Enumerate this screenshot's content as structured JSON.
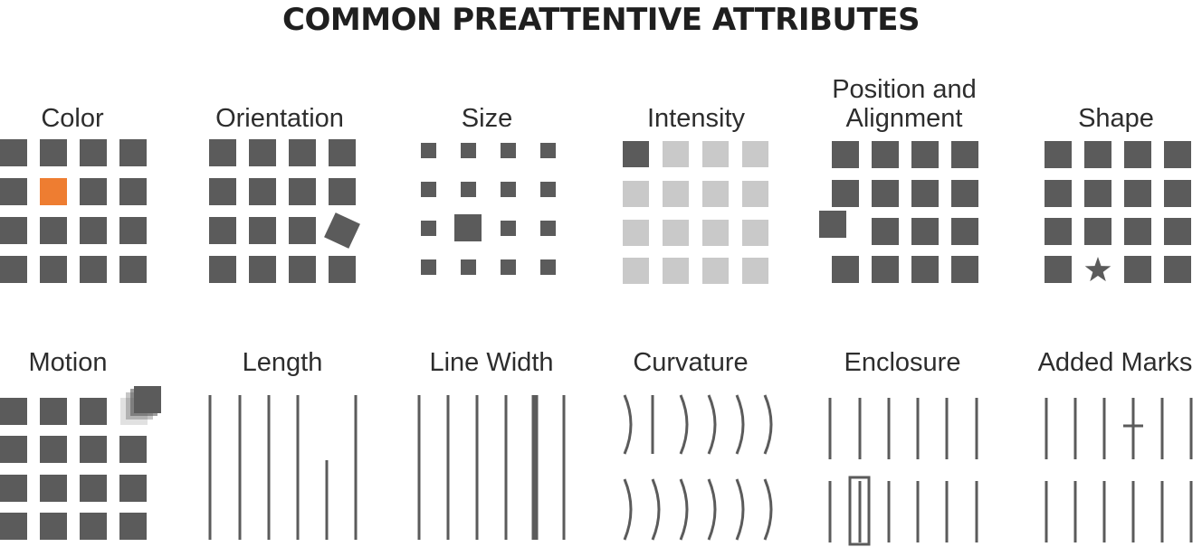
{
  "title": "COMMON PREATTENTIVE ATTRIBUTES",
  "colors": {
    "mark": "#5b5b5b",
    "highlight": "#ee7d31",
    "light": "#c9c9c9",
    "text": "#2d2d2d"
  },
  "panels": [
    {
      "id": "color",
      "label_lines": [
        "Color"
      ]
    },
    {
      "id": "orientation",
      "label_lines": [
        "Orientation"
      ]
    },
    {
      "id": "size",
      "label_lines": [
        "Size"
      ]
    },
    {
      "id": "intensity",
      "label_lines": [
        "Intensity"
      ]
    },
    {
      "id": "position",
      "label_lines": [
        "Position and",
        "Alignment"
      ]
    },
    {
      "id": "shape",
      "label_lines": [
        "Shape"
      ]
    },
    {
      "id": "motion",
      "label_lines": [
        "Motion"
      ]
    },
    {
      "id": "length",
      "label_lines": [
        "Length"
      ]
    },
    {
      "id": "linewidth",
      "label_lines": [
        "Line Width"
      ]
    },
    {
      "id": "curvature",
      "label_lines": [
        "Curvature"
      ]
    },
    {
      "id": "enclosure",
      "label_lines": [
        "Enclosure"
      ]
    },
    {
      "id": "addedmarks",
      "label_lines": [
        "Added Marks"
      ]
    }
  ]
}
